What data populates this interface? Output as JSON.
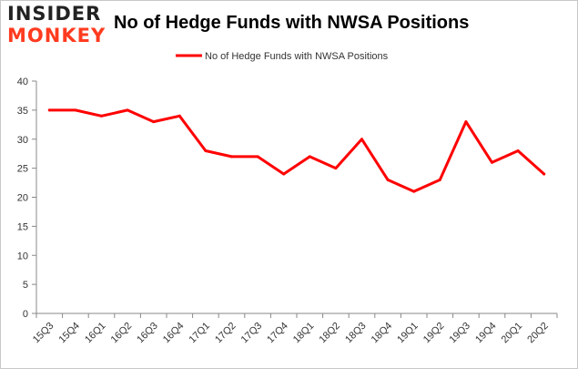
{
  "logo": {
    "line1": "INSIDER",
    "line2": "MONKEY"
  },
  "colors": {
    "series": "#ff0000",
    "logo_accent": "#ff3b1f",
    "axis": "#888888",
    "grid": "#e6e6e6"
  },
  "chart_data": {
    "type": "line",
    "title": "No of Hedge Funds with NWSA Positions",
    "xlabel": "",
    "ylabel": "",
    "ylim": [
      0,
      40
    ],
    "yticks": [
      0,
      5,
      10,
      15,
      20,
      25,
      30,
      35,
      40
    ],
    "grid": false,
    "legend_position": "top",
    "categories": [
      "15Q3",
      "15Q4",
      "16Q1",
      "16Q2",
      "16Q3",
      "16Q4",
      "17Q1",
      "17Q2",
      "17Q3",
      "17Q4",
      "18Q1",
      "18Q2",
      "18Q3",
      "18Q4",
      "19Q1",
      "19Q2",
      "19Q3",
      "19Q4",
      "20Q1",
      "20Q2"
    ],
    "series": [
      {
        "name": "No of Hedge Funds with NWSA Positions",
        "values": [
          35,
          35,
          34,
          35,
          33,
          34,
          28,
          27,
          27,
          24,
          27,
          25,
          30,
          23,
          21,
          23,
          33,
          26,
          28,
          24
        ]
      }
    ]
  }
}
